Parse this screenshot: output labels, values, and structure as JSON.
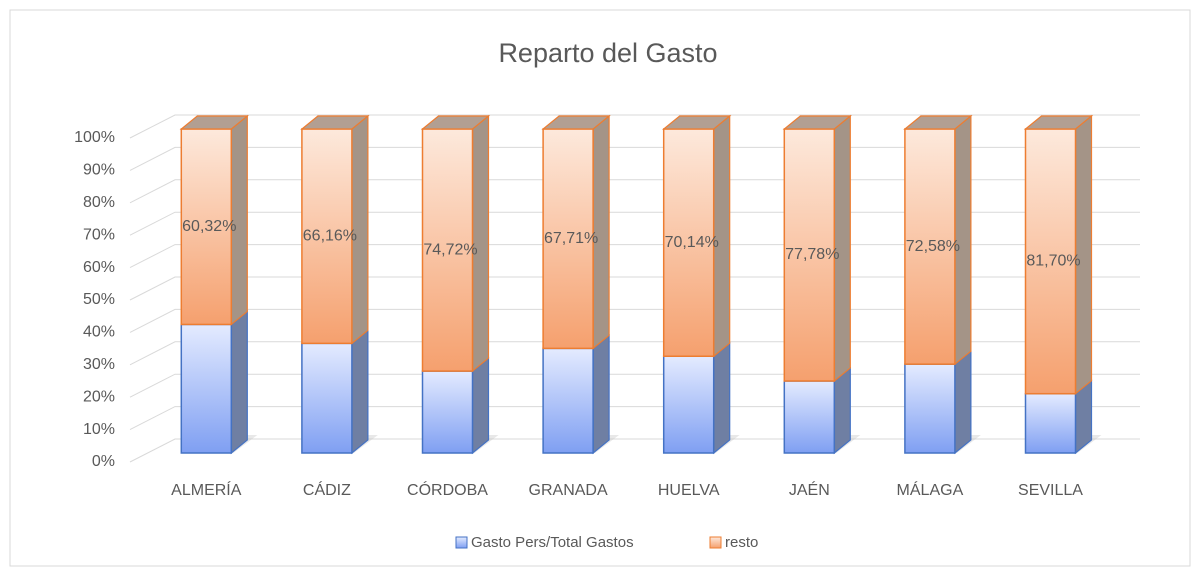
{
  "chart_data": {
    "type": "bar",
    "stacked": true,
    "title": "Reparto del Gasto",
    "categories": [
      "ALMERÍA",
      "CÁDIZ",
      "CÓRDOBA",
      "GRANADA",
      "HUELVA",
      "JAÉN",
      "MÁLAGA",
      "SEVILLA"
    ],
    "series": [
      {
        "name": "Gasto Pers/Total Gastos",
        "color": "#4472c4",
        "values": [
          39.68,
          33.84,
          25.28,
          32.29,
          29.86,
          22.22,
          27.42,
          18.3
        ]
      },
      {
        "name": "resto",
        "color": "#ed7d31",
        "values": [
          60.32,
          66.16,
          74.72,
          67.71,
          70.14,
          77.78,
          72.58,
          81.7
        ],
        "value_labels": [
          "60,32%",
          "66,16%",
          "74,72%",
          "67,71%",
          "70,14%",
          "77,78%",
          "72,58%",
          "81,70%"
        ]
      }
    ],
    "ylim": [
      0,
      100
    ],
    "yticks": [
      {
        "value": 0,
        "label": "0%"
      },
      {
        "value": 10,
        "label": "10%"
      },
      {
        "value": 20,
        "label": "20%"
      },
      {
        "value": 30,
        "label": "30%"
      },
      {
        "value": 40,
        "label": "40%"
      },
      {
        "value": 50,
        "label": "50%"
      },
      {
        "value": 60,
        "label": "60%"
      },
      {
        "value": 70,
        "label": "70%"
      },
      {
        "value": 80,
        "label": "80%"
      },
      {
        "value": 90,
        "label": "90%"
      },
      {
        "value": 100,
        "label": "100%"
      }
    ],
    "grid": true,
    "legend": "bottom"
  }
}
